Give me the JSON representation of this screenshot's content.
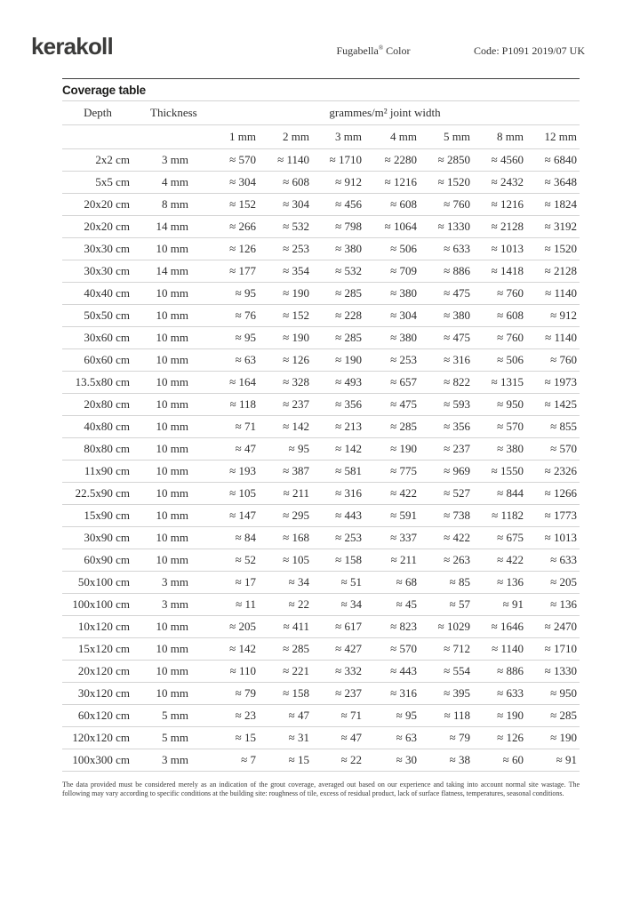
{
  "header": {
    "logo": "kerakoll",
    "product": {
      "name": "Fugabella",
      "registered": "®",
      "suffix": "Color"
    },
    "code": "Code: P1091 2019/07 UK"
  },
  "section": {
    "title": "Coverage table"
  },
  "table": {
    "col_headers": {
      "depth": "Depth",
      "thickness": "Thickness",
      "group": "grammes/m² joint width"
    },
    "joint_widths": [
      "1 mm",
      "2 mm",
      "3 mm",
      "4 mm",
      "5 mm",
      "8 mm",
      "12 mm"
    ],
    "approx_symbol": "≈",
    "rows": [
      {
        "depth": "2x2 cm",
        "thickness": "3 mm",
        "values": [
          570,
          1140,
          1710,
          2280,
          2850,
          4560,
          6840
        ]
      },
      {
        "depth": "5x5 cm",
        "thickness": "4 mm",
        "values": [
          304,
          608,
          912,
          1216,
          1520,
          2432,
          3648
        ]
      },
      {
        "depth": "20x20 cm",
        "thickness": "8 mm",
        "values": [
          152,
          304,
          456,
          608,
          760,
          1216,
          1824
        ]
      },
      {
        "depth": "20x20 cm",
        "thickness": "14 mm",
        "values": [
          266,
          532,
          798,
          1064,
          1330,
          2128,
          3192
        ]
      },
      {
        "depth": "30x30 cm",
        "thickness": "10 mm",
        "values": [
          126,
          253,
          380,
          506,
          633,
          1013,
          1520
        ]
      },
      {
        "depth": "30x30 cm",
        "thickness": "14 mm",
        "values": [
          177,
          354,
          532,
          709,
          886,
          1418,
          2128
        ]
      },
      {
        "depth": "40x40 cm",
        "thickness": "10 mm",
        "values": [
          95,
          190,
          285,
          380,
          475,
          760,
          1140
        ]
      },
      {
        "depth": "50x50 cm",
        "thickness": "10 mm",
        "values": [
          76,
          152,
          228,
          304,
          380,
          608,
          912
        ]
      },
      {
        "depth": "30x60 cm",
        "thickness": "10 mm",
        "values": [
          95,
          190,
          285,
          380,
          475,
          760,
          1140
        ]
      },
      {
        "depth": "60x60 cm",
        "thickness": "10 mm",
        "values": [
          63,
          126,
          190,
          253,
          316,
          506,
          760
        ]
      },
      {
        "depth": "13.5x80 cm",
        "thickness": "10 mm",
        "values": [
          164,
          328,
          493,
          657,
          822,
          1315,
          1973
        ]
      },
      {
        "depth": "20x80 cm",
        "thickness": "10 mm",
        "values": [
          118,
          237,
          356,
          475,
          593,
          950,
          1425
        ]
      },
      {
        "depth": "40x80 cm",
        "thickness": "10 mm",
        "values": [
          71,
          142,
          213,
          285,
          356,
          570,
          855
        ]
      },
      {
        "depth": "80x80 cm",
        "thickness": "10 mm",
        "values": [
          47,
          95,
          142,
          190,
          237,
          380,
          570
        ]
      },
      {
        "depth": "11x90 cm",
        "thickness": "10 mm",
        "values": [
          193,
          387,
          581,
          775,
          969,
          1550,
          2326
        ]
      },
      {
        "depth": "22.5x90 cm",
        "thickness": "10 mm",
        "values": [
          105,
          211,
          316,
          422,
          527,
          844,
          1266
        ]
      },
      {
        "depth": "15x90 cm",
        "thickness": "10 mm",
        "values": [
          147,
          295,
          443,
          591,
          738,
          1182,
          1773
        ]
      },
      {
        "depth": "30x90 cm",
        "thickness": "10 mm",
        "values": [
          84,
          168,
          253,
          337,
          422,
          675,
          1013
        ]
      },
      {
        "depth": "60x90 cm",
        "thickness": "10 mm",
        "values": [
          52,
          105,
          158,
          211,
          263,
          422,
          633
        ]
      },
      {
        "depth": "50x100 cm",
        "thickness": "3 mm",
        "values": [
          17,
          34,
          51,
          68,
          85,
          136,
          205
        ]
      },
      {
        "depth": "100x100 cm",
        "thickness": "3 mm",
        "values": [
          11,
          22,
          34,
          45,
          57,
          91,
          136
        ]
      },
      {
        "depth": "10x120 cm",
        "thickness": "10 mm",
        "values": [
          205,
          411,
          617,
          823,
          1029,
          1646,
          2470
        ]
      },
      {
        "depth": "15x120 cm",
        "thickness": "10 mm",
        "values": [
          142,
          285,
          427,
          570,
          712,
          1140,
          1710
        ]
      },
      {
        "depth": "20x120 cm",
        "thickness": "10 mm",
        "values": [
          110,
          221,
          332,
          443,
          554,
          886,
          1330
        ]
      },
      {
        "depth": "30x120 cm",
        "thickness": "10 mm",
        "values": [
          79,
          158,
          237,
          316,
          395,
          633,
          950
        ]
      },
      {
        "depth": "60x120 cm",
        "thickness": "5 mm",
        "values": [
          23,
          47,
          71,
          95,
          118,
          190,
          285
        ]
      },
      {
        "depth": "120x120 cm",
        "thickness": "5 mm",
        "values": [
          15,
          31,
          47,
          63,
          79,
          126,
          190
        ]
      },
      {
        "depth": "100x300 cm",
        "thickness": "3 mm",
        "values": [
          7,
          15,
          22,
          30,
          38,
          60,
          91
        ]
      }
    ]
  },
  "footnote": "The data provided must be considered merely as an indication of the grout coverage, averaged out based on our experience and taking into account normal site wastage. The following may vary according to specific conditions at the building site: roughness of tile, excess of residual product, lack of surface flatness, temperatures, seasonal conditions."
}
